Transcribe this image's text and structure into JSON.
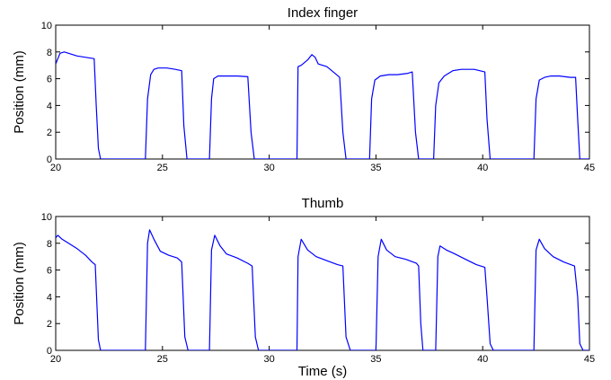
{
  "line_color": "#0000ff",
  "chart_data": [
    {
      "type": "line",
      "title": "Index finger",
      "xlabel": "",
      "ylabel": "Position (mm)",
      "xlim": [
        20,
        45
      ],
      "ylim": [
        0,
        10
      ],
      "xticks": [
        20,
        25,
        30,
        35,
        40,
        45
      ],
      "yticks": [
        0,
        2,
        4,
        6,
        8,
        10
      ],
      "grid": false,
      "series": [
        {
          "x": [
            20.0,
            20.2,
            20.4,
            20.6,
            21.0,
            21.4,
            21.8,
            21.9,
            22.0,
            22.1,
            24.2,
            24.3,
            24.45,
            24.6,
            24.8,
            25.2,
            25.6,
            25.9,
            26.0,
            26.15,
            27.2,
            27.3,
            27.4,
            27.6,
            28.0,
            28.5,
            29.0,
            29.15,
            29.3,
            31.3,
            31.35,
            31.5,
            31.8,
            32.0,
            32.15,
            32.3,
            32.7,
            33.0,
            33.3,
            33.45,
            33.6,
            34.7,
            34.8,
            34.95,
            35.2,
            35.6,
            36.0,
            36.5,
            36.7,
            36.85,
            37.0,
            37.7,
            37.8,
            37.95,
            38.2,
            38.6,
            39.0,
            39.6,
            40.1,
            40.2,
            40.35,
            42.4,
            42.5,
            42.65,
            42.9,
            43.2,
            43.6,
            44.1,
            44.35,
            44.45,
            44.55,
            45.0
          ],
          "y": [
            7.1,
            7.9,
            8.0,
            7.9,
            7.7,
            7.6,
            7.5,
            4.0,
            0.8,
            0.0,
            0.0,
            4.5,
            6.3,
            6.7,
            6.8,
            6.8,
            6.7,
            6.6,
            2.5,
            0.0,
            0.0,
            4.5,
            6.0,
            6.2,
            6.2,
            6.2,
            6.15,
            2.0,
            0.0,
            0.0,
            6.9,
            7.0,
            7.4,
            7.8,
            7.6,
            7.1,
            6.9,
            6.5,
            6.1,
            2.0,
            0.0,
            0.0,
            4.5,
            5.9,
            6.2,
            6.3,
            6.3,
            6.4,
            6.5,
            2.0,
            0.0,
            0.0,
            4.0,
            5.7,
            6.2,
            6.6,
            6.7,
            6.7,
            6.5,
            3.0,
            0.0,
            0.0,
            4.5,
            5.9,
            6.1,
            6.2,
            6.2,
            6.1,
            6.1,
            3.0,
            0.0,
            0.0
          ]
        }
      ]
    },
    {
      "type": "line",
      "title": "Thumb",
      "xlabel": "Time (s)",
      "ylabel": "Position (mm)",
      "xlim": [
        20,
        45
      ],
      "ylim": [
        0,
        10
      ],
      "xticks": [
        20,
        25,
        30,
        35,
        40,
        45
      ],
      "yticks": [
        0,
        2,
        4,
        6,
        8,
        10
      ],
      "grid": false,
      "series": [
        {
          "x": [
            20.0,
            20.1,
            20.3,
            20.6,
            21.0,
            21.4,
            21.7,
            21.85,
            22.0,
            22.1,
            24.2,
            24.3,
            24.4,
            24.6,
            24.9,
            25.3,
            25.7,
            25.9,
            26.05,
            26.2,
            27.2,
            27.3,
            27.45,
            27.7,
            28.0,
            28.5,
            29.0,
            29.2,
            29.35,
            29.5,
            31.3,
            31.35,
            31.5,
            31.8,
            32.2,
            32.7,
            33.2,
            33.45,
            33.6,
            33.8,
            35.0,
            35.1,
            35.25,
            35.5,
            35.9,
            36.4,
            36.9,
            37.0,
            37.1,
            37.2,
            37.8,
            37.9,
            38.0,
            38.3,
            38.7,
            39.2,
            39.7,
            40.1,
            40.2,
            40.35,
            40.5,
            42.4,
            42.5,
            42.65,
            42.9,
            43.3,
            43.8,
            44.3,
            44.45,
            44.55,
            44.7,
            45.0
          ],
          "y": [
            8.4,
            8.6,
            8.3,
            8.0,
            7.6,
            7.1,
            6.6,
            6.4,
            0.8,
            0.0,
            0.0,
            8.0,
            9.0,
            8.3,
            7.4,
            7.1,
            6.9,
            6.6,
            1.0,
            0.0,
            0.0,
            7.5,
            8.6,
            7.8,
            7.2,
            6.9,
            6.5,
            6.3,
            1.0,
            0.0,
            0.0,
            7.0,
            8.3,
            7.5,
            7.0,
            6.7,
            6.4,
            6.3,
            1.0,
            0.0,
            0.0,
            7.0,
            8.3,
            7.5,
            7.0,
            6.8,
            6.5,
            6.3,
            2.0,
            0.0,
            0.0,
            7.0,
            7.8,
            7.5,
            7.2,
            6.8,
            6.4,
            6.2,
            4.0,
            0.5,
            0.0,
            0.0,
            7.5,
            8.3,
            7.6,
            7.0,
            6.6,
            6.3,
            4.0,
            0.5,
            0.0,
            0.0
          ]
        }
      ]
    }
  ]
}
